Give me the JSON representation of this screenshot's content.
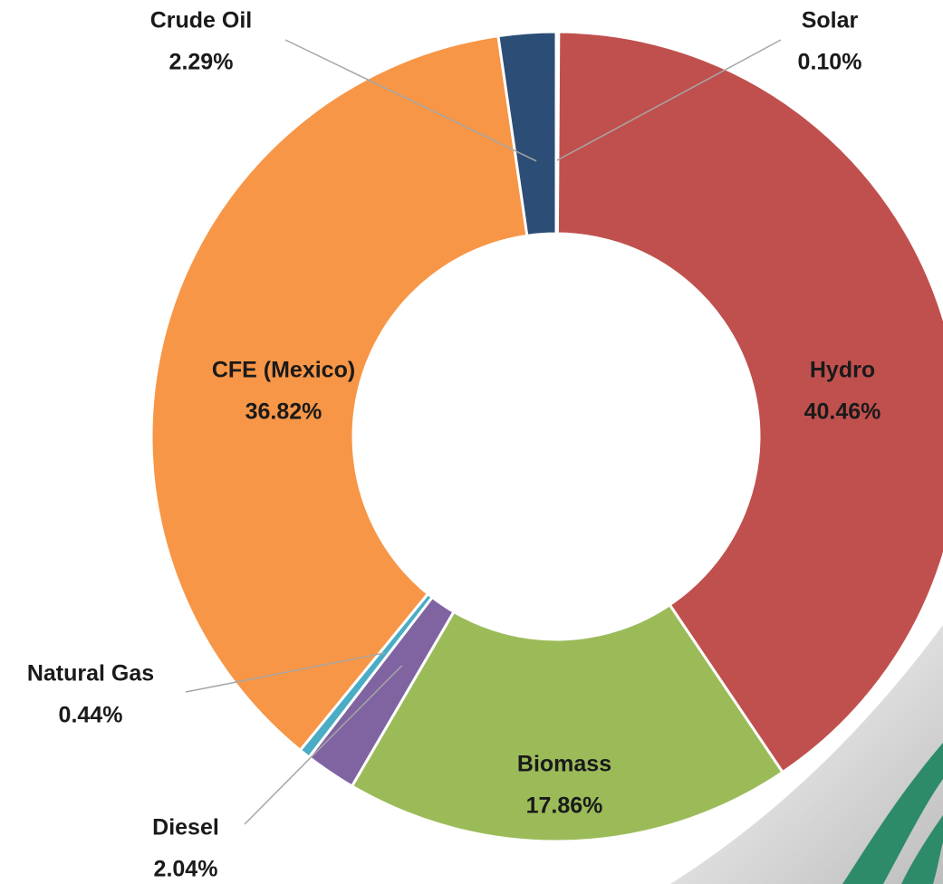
{
  "chart_data": {
    "type": "donut",
    "categories": [
      "Solar",
      "Hydro",
      "Biomass",
      "Diesel",
      "Natural Gas",
      "CFE (Mexico)",
      "Crude Oil"
    ],
    "values": [
      0.1,
      40.46,
      17.86,
      2.04,
      0.44,
      36.82,
      2.29
    ],
    "value_labels": [
      "0.10%",
      "40.46%",
      "17.86%",
      "2.04%",
      "0.44%",
      "36.82%",
      "2.29%"
    ],
    "colors": [
      "#4f81bd",
      "#c0504d",
      "#9bbb59",
      "#8064a2",
      "#4bacc6",
      "#f79646",
      "#2c4d75"
    ]
  }
}
